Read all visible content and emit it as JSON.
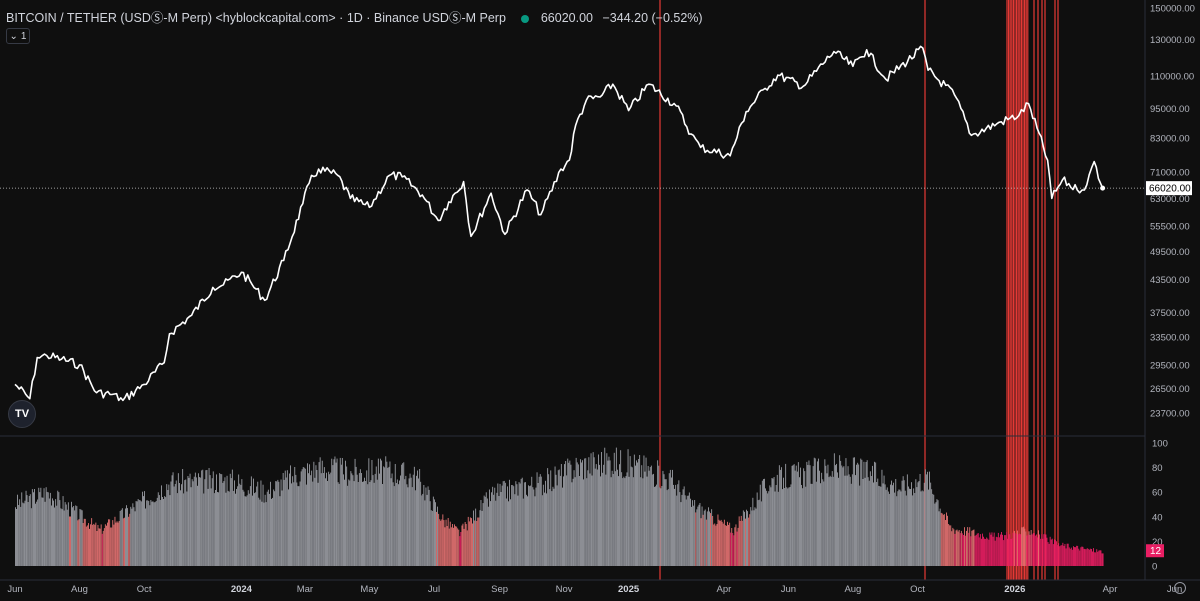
{
  "legend": {
    "title": "BITCOIN / TETHER (USDⓈ-M Perp) <hyblockcapital.com> · 1D · Binance USDⓈ-M Perp",
    "price": "66020.00",
    "change": "−344.20 (−0.52%)"
  },
  "pane_control": {
    "label": "1"
  },
  "logo": {
    "text": "TV"
  },
  "colors": {
    "background": "#0f0f0f",
    "price_line": "#ffffff",
    "signal_red": "#e53935",
    "bar_grey": "#9a9ca3",
    "bar_salmon": "#e57373",
    "bar_pink": "#e91e63",
    "badge": "#e91e63"
  },
  "chart_data": [
    {
      "type": "line",
      "title": "BITCOIN / TETHER (USDⓈ-M Perp)",
      "scale": "log",
      "y_ticks": [
        "150000.00",
        "130000.00",
        "110000.00",
        "95000.00",
        "83000.00",
        "71000.00",
        "63000.00",
        "55500.00",
        "49500.00",
        "43500.00",
        "37500.00",
        "33500.00",
        "29500.00",
        "26500.00",
        "23700.00"
      ],
      "current_value_label": "66020.00",
      "current_value": 66020,
      "x_ticks": [
        "Jun",
        "Aug",
        "Oct",
        "2024",
        "Mar",
        "May",
        "Jul",
        "Sep",
        "Nov",
        "2025",
        "Apr",
        "Jun",
        "Aug",
        "Oct",
        "2026",
        "Apr",
        "Jun"
      ],
      "series": [
        {
          "x": [
            "2023-06-01",
            "2023-06-15",
            "2023-06-22",
            "2023-07-01",
            "2023-07-15",
            "2023-08-01",
            "2023-08-17",
            "2023-09-01",
            "2023-09-11",
            "2023-10-01",
            "2023-10-20",
            "2023-10-25",
            "2023-11-15",
            "2023-12-05",
            "2023-12-15",
            "2024-01-01",
            "2024-01-11",
            "2024-01-23",
            "2024-02-10",
            "2024-02-28",
            "2024-03-05",
            "2024-03-14",
            "2024-04-01",
            "2024-04-13",
            "2024-05-01",
            "2024-05-20",
            "2024-06-01",
            "2024-06-20",
            "2024-07-05",
            "2024-07-15",
            "2024-07-29",
            "2024-08-05",
            "2024-08-24",
            "2024-09-06",
            "2024-09-27",
            "2024-10-10",
            "2024-10-29",
            "2024-11-06",
            "2024-11-12",
            "2024-11-22",
            "2024-12-05",
            "2024-12-17",
            "2025-01-01",
            "2025-01-20",
            "2025-02-15",
            "2025-03-01",
            "2025-03-10",
            "2025-04-07",
            "2025-04-22",
            "2025-05-10",
            "2025-05-22",
            "2025-06-15",
            "2025-07-14",
            "2025-08-01",
            "2025-08-14",
            "2025-09-01",
            "2025-10-06",
            "2025-10-11",
            "2025-11-05",
            "2025-11-21",
            "2025-12-15",
            "2026-01-05",
            "2026-01-14",
            "2026-02-01",
            "2026-02-05",
            "2026-02-15",
            "2026-03-01",
            "2026-03-10",
            "2026-03-17",
            "2026-03-25"
          ],
          "y": [
            27000,
            25300,
            30500,
            30800,
            30300,
            29500,
            26000,
            25800,
            25100,
            27000,
            29800,
            34000,
            37000,
            42000,
            42500,
            45000,
            42600,
            39600,
            47500,
            61500,
            67500,
            72000,
            70000,
            63000,
            60500,
            70000,
            69500,
            64000,
            57000,
            62000,
            68000,
            53000,
            64500,
            53500,
            65500,
            58500,
            72000,
            75000,
            88000,
            98500,
            100000,
            106000,
            94000,
            106000,
            96000,
            84500,
            79500,
            76500,
            93500,
            104000,
            110500,
            105000,
            123000,
            115000,
            124000,
            108500,
            125000,
            113000,
            101000,
            84000,
            88500,
            92000,
            97000,
            75000,
            63000,
            68500,
            65500,
            67000,
            74500,
            66020
          ]
        }
      ]
    },
    {
      "type": "bar",
      "y_ticks": [
        "100",
        "80",
        "60",
        "40",
        "20",
        "0"
      ],
      "ylim": [
        0,
        100
      ],
      "last_value_label": "12",
      "series": [
        {
          "x": [
            "2023-06-01",
            "2023-07-01",
            "2023-08-20",
            "2023-10-25",
            "2023-12-20",
            "2024-01-25",
            "2024-02-20",
            "2024-03-15",
            "2024-04-15",
            "2024-05-15",
            "2024-06-15",
            "2024-07-10",
            "2024-07-25",
            "2024-08-25",
            "2024-10-01",
            "2024-10-20",
            "2024-11-15",
            "2024-12-15",
            "2025-01-15",
            "2025-02-10",
            "2025-03-01",
            "2025-04-10",
            "2025-05-15",
            "2025-07-15",
            "2025-08-15",
            "2025-09-15",
            "2025-10-10",
            "2025-11-01",
            "2025-12-15",
            "2026-01-15",
            "2026-02-10",
            "2026-03-25"
          ],
          "values": [
            52,
            62,
            30,
            70,
            72,
            62,
            76,
            82,
            78,
            80,
            74,
            38,
            28,
            60,
            68,
            72,
            84,
            88,
            82,
            72,
            52,
            30,
            72,
            82,
            78,
            66,
            74,
            32,
            24,
            30,
            18,
            12
          ]
        }
      ]
    }
  ]
}
